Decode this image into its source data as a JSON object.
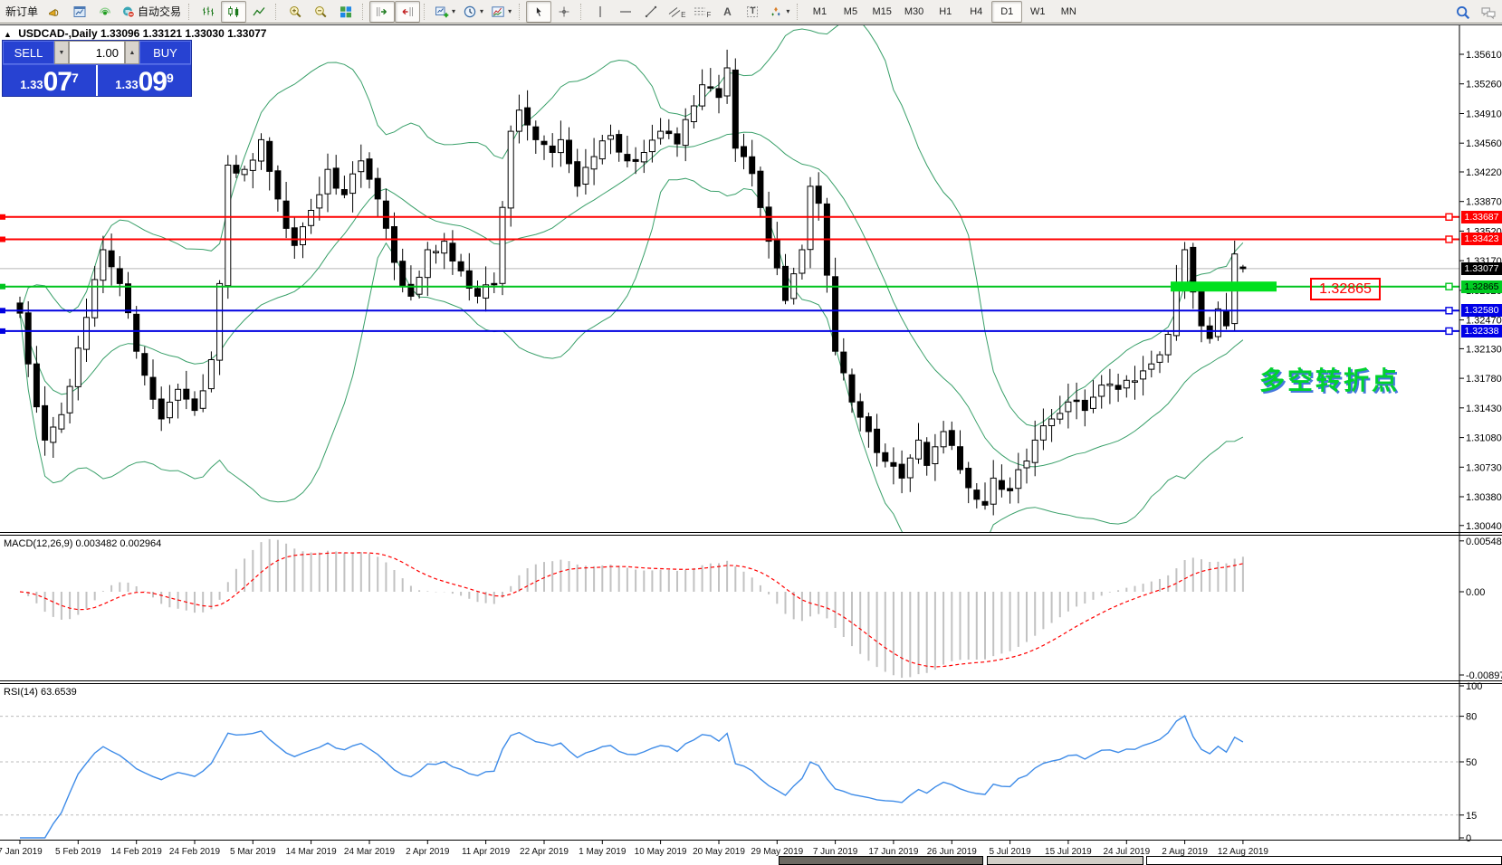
{
  "toolbar": {
    "items": [
      {
        "type": "text",
        "name": "new-order-button",
        "label": "新订单"
      },
      {
        "type": "icon",
        "name": "alerts-horn-button",
        "icon": "horn"
      },
      {
        "type": "icon",
        "name": "metaeditor-button",
        "icon": "editor"
      },
      {
        "type": "icon",
        "name": "signals-button",
        "icon": "signal"
      },
      {
        "type": "icon-text",
        "name": "autotrading-button",
        "icon": "autotrade",
        "label": "自动交易"
      },
      {
        "type": "sep"
      },
      {
        "type": "icon",
        "name": "bar-chart-button",
        "icon": "bars"
      },
      {
        "type": "icon",
        "name": "candlestick-chart-button",
        "icon": "candles",
        "pressed": true
      },
      {
        "type": "icon",
        "name": "line-chart-button",
        "icon": "linechart"
      },
      {
        "type": "sep"
      },
      {
        "type": "icon",
        "name": "zoom-in-button",
        "icon": "zoomin"
      },
      {
        "type": "icon",
        "name": "zoom-out-button",
        "icon": "zoomout"
      },
      {
        "type": "icon",
        "name": "tile-windows-button",
        "icon": "tiles"
      },
      {
        "type": "sep"
      },
      {
        "type": "icon",
        "name": "auto-scroll-button",
        "icon": "autoscroll",
        "pressed": true
      },
      {
        "type": "icon",
        "name": "chart-shift-button",
        "icon": "shift",
        "pressed": true
      },
      {
        "type": "sep"
      },
      {
        "type": "icon",
        "name": "indicators-button",
        "icon": "addind",
        "caret": true
      },
      {
        "type": "icon",
        "name": "periods-button",
        "icon": "clock",
        "caret": true
      },
      {
        "type": "icon",
        "name": "templates-button",
        "icon": "template",
        "caret": true
      },
      {
        "type": "sep"
      },
      {
        "type": "icon",
        "name": "cursor-button",
        "icon": "cursor",
        "pressed": true
      },
      {
        "type": "icon",
        "name": "crosshair-button",
        "icon": "crosshair"
      },
      {
        "type": "sep"
      },
      {
        "type": "icon",
        "name": "vertical-line-button",
        "icon": "vline"
      },
      {
        "type": "icon",
        "name": "horizontal-line-button",
        "icon": "hline"
      },
      {
        "type": "icon",
        "name": "trendline-button",
        "icon": "trendline"
      },
      {
        "type": "icon",
        "name": "equidistant-channel-button",
        "icon": "channel",
        "sub": "E"
      },
      {
        "type": "icon",
        "name": "fibonacci-button",
        "icon": "fibo",
        "sub": "F"
      },
      {
        "type": "glyph",
        "name": "text-tool-button",
        "glyph": "A"
      },
      {
        "type": "icon-glyph",
        "name": "text-label-button",
        "icon": "labelT",
        "glyph": "T"
      },
      {
        "type": "icon",
        "name": "arrows-button",
        "icon": "arrows",
        "caret": true
      },
      {
        "type": "sep"
      },
      {
        "type": "tf",
        "name": "timeframe-m1",
        "label": "M1"
      },
      {
        "type": "tf",
        "name": "timeframe-m5",
        "label": "M5"
      },
      {
        "type": "tf",
        "name": "timeframe-m15",
        "label": "M15"
      },
      {
        "type": "tf",
        "name": "timeframe-m30",
        "label": "M30"
      },
      {
        "type": "tf",
        "name": "timeframe-h1",
        "label": "H1"
      },
      {
        "type": "tf",
        "name": "timeframe-h4",
        "label": "H4"
      },
      {
        "type": "tf",
        "name": "timeframe-d1",
        "label": "D1",
        "pressed": true
      },
      {
        "type": "tf",
        "name": "timeframe-w1",
        "label": "W1"
      },
      {
        "type": "tf",
        "name": "timeframe-mn",
        "label": "MN"
      },
      {
        "type": "spacer"
      },
      {
        "type": "icon",
        "name": "search-button",
        "icon": "search"
      },
      {
        "type": "icon",
        "name": "chat-button",
        "icon": "chat"
      }
    ]
  },
  "chart": {
    "title_symbol": "USDCAD-,Daily",
    "title_ohlc": "1.33096 1.33121 1.33030 1.33077"
  },
  "quote_panel": {
    "collapse_glyph": "▲",
    "sell_label": "SELL",
    "buy_label": "BUY",
    "volume": "1.00",
    "spin_down_glyph": "▼",
    "spin_up_glyph": "▲",
    "sell_price": {
      "prefix": "1.33",
      "big": "07",
      "sup": "7"
    },
    "buy_price": {
      "prefix": "1.33",
      "big": "09",
      "sup": "9"
    }
  },
  "indicators": {
    "macd_label": "MACD(12,26,9) 0.003482 0.002964",
    "rsi_label": "RSI(14) 63.6539"
  },
  "annotations": {
    "level_box_text": "1.32865",
    "cn_text": "多空转折点"
  },
  "colors": {
    "bollinger": "#3aa06a",
    "candle_up": "#ffffff",
    "candle_down": "#000000",
    "candle_outline": "#000000",
    "bid_line": "#b8b8b8",
    "macd_hist": "#c2c2c2",
    "macd_signal": "#ff0000",
    "rsi_line": "#3f8ce8",
    "rsi_dashed": "#bbbbbb",
    "axis_line": "#000000"
  },
  "chart_data": {
    "type": "candlestick",
    "symbol": "USDCAD",
    "timeframe": "Daily",
    "current_ohlc": {
      "open": 1.33096,
      "high": 1.33121,
      "low": 1.3303,
      "close": 1.33077
    },
    "num_candles": 148,
    "ylim": [
      1.299,
      1.359
    ],
    "price_path_anchors": [
      [
        0,
        1.3255
      ],
      [
        1,
        1.3195
      ],
      [
        3,
        1.3105
      ],
      [
        5,
        1.3135
      ],
      [
        8,
        1.325
      ],
      [
        10,
        1.333
      ],
      [
        12,
        1.329
      ],
      [
        14,
        1.321
      ],
      [
        17,
        1.313
      ],
      [
        19,
        1.3165
      ],
      [
        21,
        1.314
      ],
      [
        23,
        1.32
      ],
      [
        24,
        1.329
      ],
      [
        25,
        1.343
      ],
      [
        27,
        1.3425
      ],
      [
        29,
        1.346
      ],
      [
        31,
        1.339
      ],
      [
        33,
        1.3335
      ],
      [
        36,
        1.3395
      ],
      [
        37,
        1.3425
      ],
      [
        39,
        1.3395
      ],
      [
        41,
        1.3435
      ],
      [
        43,
        1.339
      ],
      [
        45,
        1.3315
      ],
      [
        47,
        1.3275
      ],
      [
        49,
        1.333
      ],
      [
        51,
        1.334
      ],
      [
        53,
        1.3305
      ],
      [
        55,
        1.3275
      ],
      [
        57,
        1.329
      ],
      [
        58,
        1.338
      ],
      [
        59,
        1.347
      ],
      [
        60,
        1.3495
      ],
      [
        62,
        1.346
      ],
      [
        64,
        1.3445
      ],
      [
        65,
        1.346
      ],
      [
        67,
        1.3405
      ],
      [
        69,
        1.344
      ],
      [
        71,
        1.3465
      ],
      [
        73,
        1.3435
      ],
      [
        75,
        1.3445
      ],
      [
        77,
        1.347
      ],
      [
        79,
        1.3455
      ],
      [
        81,
        1.35
      ],
      [
        82,
        1.3525
      ],
      [
        84,
        1.351
      ],
      [
        85,
        1.3545
      ],
      [
        86,
        1.345
      ],
      [
        88,
        1.342
      ],
      [
        90,
        1.334
      ],
      [
        92,
        1.327
      ],
      [
        94,
        1.333
      ],
      [
        95,
        1.3405
      ],
      [
        96,
        1.3385
      ],
      [
        97,
        1.33
      ],
      [
        98,
        1.321
      ],
      [
        100,
        1.315
      ],
      [
        102,
        1.3115
      ],
      [
        104,
        1.308
      ],
      [
        106,
        1.306
      ],
      [
        108,
        1.3105
      ],
      [
        109,
        1.3075
      ],
      [
        111,
        1.3115
      ],
      [
        113,
        1.307
      ],
      [
        115,
        1.3035
      ],
      [
        116,
        1.3028
      ],
      [
        117,
        1.306
      ],
      [
        119,
        1.3045
      ],
      [
        120,
        1.307
      ],
      [
        122,
        1.3105
      ],
      [
        124,
        1.313
      ],
      [
        126,
        1.315
      ],
      [
        128,
        1.314
      ],
      [
        130,
        1.317
      ],
      [
        132,
        1.3165
      ],
      [
        134,
        1.3175
      ],
      [
        136,
        1.3195
      ],
      [
        138,
        1.323
      ],
      [
        139,
        1.329
      ],
      [
        140,
        1.333
      ],
      [
        141,
        1.328
      ],
      [
        142,
        1.324
      ],
      [
        143,
        1.3225
      ],
      [
        144,
        1.326
      ],
      [
        145,
        1.324
      ],
      [
        146,
        1.3325
      ],
      [
        147,
        1.33077
      ]
    ],
    "indicator_params": {
      "bollinger": {
        "period": 20,
        "deviation": 2
      },
      "macd": {
        "fast": 12,
        "slow": 26,
        "signal": 9,
        "value": 0.003482,
        "signal_value": 0.002964,
        "scale_max": 0.005484,
        "scale_min": -0.008973
      },
      "rsi": {
        "period": 14,
        "value": 63.6539,
        "levels": [
          80,
          50,
          15
        ],
        "scale": [
          0,
          100
        ]
      }
    },
    "horizontal_levels": [
      {
        "price": 1.33687,
        "label": "1.33687",
        "color": "#ff0000",
        "label_bg": "#ff0000",
        "label_fg": "#ffffff"
      },
      {
        "price": 1.33423,
        "label": "1.33423",
        "color": "#ff0000",
        "label_bg": "#ff0000",
        "label_fg": "#ffffff"
      },
      {
        "price": 1.32865,
        "label": "1.32865",
        "color": "#00c41e",
        "label_bg": "#00cc22",
        "label_fg": "#000000"
      },
      {
        "price": 1.3258,
        "label": "1.32580",
        "color": "#0000e0",
        "label_bg": "#0000e6",
        "label_fg": "#ffffff"
      },
      {
        "price": 1.32338,
        "label": "1.32338",
        "color": "#0000e0",
        "label_bg": "#0000e6",
        "label_fg": "#ffffff"
      }
    ],
    "bid": {
      "price": 1.33077,
      "label": "1.33077",
      "label_bg": "#000000",
      "label_fg": "#ffffff"
    },
    "support_zone_bar": {
      "price": 1.32865,
      "x_from": 1293,
      "x_to": 1410,
      "color": "#00e01e"
    },
    "y_ticks": [
      {
        "v": 1.3561,
        "t": "1.35610"
      },
      {
        "v": 1.3526,
        "t": "1.35260"
      },
      {
        "v": 1.3491,
        "t": "1.34910"
      },
      {
        "v": 1.3456,
        "t": "1.34560"
      },
      {
        "v": 1.3422,
        "t": "1.34220"
      },
      {
        "v": 1.3387,
        "t": "1.33870"
      },
      {
        "v": 1.3352,
        "t": "1.33520"
      },
      {
        "v": 1.3317,
        "t": "1.33170"
      },
      {
        "v": 1.3282,
        "t": "1.32820"
      },
      {
        "v": 1.3247,
        "t": "1.32470"
      },
      {
        "v": 1.3213,
        "t": "1.32130"
      },
      {
        "v": 1.3178,
        "t": "1.31780"
      },
      {
        "v": 1.3143,
        "t": "1.31430"
      },
      {
        "v": 1.3108,
        "t": "1.31080"
      },
      {
        "v": 1.3073,
        "t": "1.30730"
      },
      {
        "v": 1.3038,
        "t": "1.30380"
      },
      {
        "v": 1.3004,
        "t": "1.30040"
      }
    ],
    "macd_ticks": [
      {
        "v": 0.005484,
        "t": "0.005484"
      },
      {
        "v": 0,
        "t": "0.00"
      },
      {
        "v": -0.008973,
        "t": "-0.008973"
      }
    ],
    "rsi_ticks": [
      {
        "v": 100,
        "t": "100"
      },
      {
        "v": 80,
        "t": "80"
      },
      {
        "v": 50,
        "t": "50"
      },
      {
        "v": 15,
        "t": "15"
      },
      {
        "v": 0,
        "t": "0"
      }
    ],
    "x_labels": [
      "7 Jan 2019",
      "5 Feb 2019",
      "14 Feb 2019",
      "24 Feb 2019",
      "5 Mar 2019",
      "14 Mar 2019",
      "24 Mar 2019",
      "2 Apr 2019",
      "11 Apr 2019",
      "22 Apr 2019",
      "1 May 2019",
      "10 May 2019",
      "20 May 2019",
      "29 May 2019",
      "7 Jun 2019",
      "17 Jun 2019",
      "26 Jun 2019",
      "5 Jul 2019",
      "15 Jul 2019",
      "24 Jul 2019",
      "2 Aug 2019",
      "12 Aug 2019"
    ]
  }
}
